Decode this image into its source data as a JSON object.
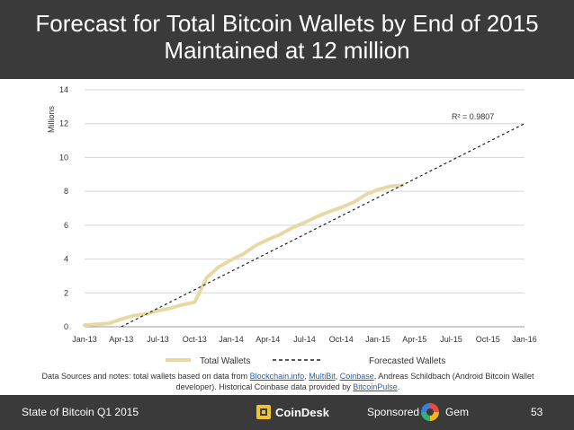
{
  "header": {
    "title_line1": "Forecast for Total Bitcoin Wallets by End of 2015",
    "title_line2": "Maintained at 12 million"
  },
  "chart_data": {
    "type": "line",
    "ylabel": "Millions",
    "xlabel": "",
    "ylim": [
      0,
      14
    ],
    "y_ticks": [
      "0",
      "2",
      "4",
      "6",
      "8",
      "10",
      "12",
      "14"
    ],
    "x_ticks": [
      "Jan-13",
      "Apr-13",
      "Jul-13",
      "Oct-13",
      "Jan-14",
      "Apr-14",
      "Jul-14",
      "Oct-14",
      "Jan-15",
      "Apr-15",
      "Jul-15",
      "Oct-15",
      "Jan-16"
    ],
    "grid": "horizontal",
    "legend_position": "bottom",
    "annotation": "R² = 0.9807",
    "series": [
      {
        "name": "Total Wallets",
        "style": "solid",
        "color": "#e8d9a4",
        "x": [
          "Jan-13",
          "Feb-13",
          "Mar-13",
          "Apr-13",
          "May-13",
          "Jun-13",
          "Jul-13",
          "Aug-13",
          "Sep-13",
          "Oct-13",
          "Nov-13",
          "Dec-13",
          "Jan-14",
          "Feb-14",
          "Mar-14",
          "Apr-14",
          "May-14",
          "Jun-14",
          "Jul-14",
          "Aug-14",
          "Sep-14",
          "Oct-14",
          "Nov-14",
          "Dec-14",
          "Jan-15",
          "Feb-15",
          "Mar-15"
        ],
        "values": [
          0.1,
          0.15,
          0.2,
          0.45,
          0.65,
          0.75,
          0.95,
          1.1,
          1.3,
          1.45,
          2.9,
          3.55,
          3.95,
          4.3,
          4.8,
          5.15,
          5.45,
          5.85,
          6.15,
          6.5,
          6.8,
          7.05,
          7.35,
          7.8,
          8.1,
          8.3,
          8.35
        ]
      },
      {
        "name": "Forecasted Wallets",
        "style": "dashed",
        "color": "#222222",
        "x": [
          "Apr-13",
          "Jan-16"
        ],
        "values": [
          0,
          12
        ]
      }
    ]
  },
  "notes": {
    "prefix": "Data Sources and notes: total wallets based on data from ",
    "link1": "Blockchain.info",
    "sep1": ", ",
    "link2": "MultiBit",
    "sep2": ", ",
    "link3": "Coinbase",
    "middle": ", Andreas Schildbach (Android Bitcoin Wallet developer). Historical Coinbase data provided by ",
    "link4": "BitcoinPulse",
    "suffix": "."
  },
  "footer": {
    "left": "State of Bitcoin Q1 2015",
    "brand": "CoinDesk",
    "sponsor": "Sponsored by",
    "sponsor_name": "Gem",
    "page": "53"
  }
}
